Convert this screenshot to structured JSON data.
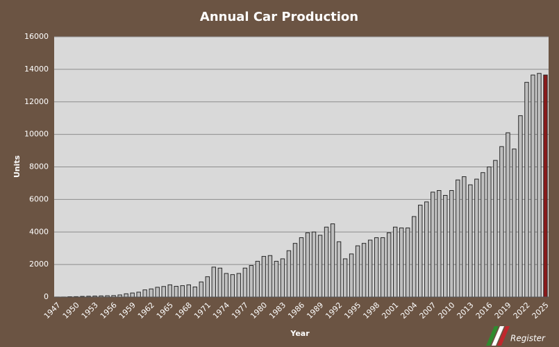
{
  "chart_data": {
    "type": "bar",
    "title": "Annual Car Production",
    "x_label": "Year",
    "y_label": "Units",
    "categories": [
      "1947",
      null,
      null,
      "1950",
      null,
      null,
      "1953",
      null,
      null,
      "1956",
      null,
      null,
      "1959",
      null,
      null,
      "1962",
      null,
      null,
      "1965",
      null,
      null,
      "1968",
      null,
      null,
      "1971",
      null,
      null,
      "1974",
      null,
      null,
      "1977",
      null,
      null,
      "1980",
      null,
      null,
      "1983",
      null,
      null,
      "1986",
      null,
      null,
      "1989",
      null,
      null,
      "1992",
      null,
      null,
      "1995",
      null,
      null,
      "1998",
      null,
      null,
      "2001",
      null,
      null,
      "2004",
      null,
      null,
      "2007",
      null,
      null,
      "2010",
      null,
      null,
      "2013",
      null,
      null,
      "2016",
      null,
      null,
      "2019",
      null,
      null,
      "2022",
      null,
      null,
      "2025"
    ],
    "values": [
      3,
      5,
      20,
      25,
      40,
      50,
      60,
      70,
      80,
      90,
      130,
      200,
      250,
      300,
      440,
      500,
      600,
      650,
      750,
      660,
      700,
      750,
      620,
      930,
      1250,
      1840,
      1780,
      1450,
      1380,
      1450,
      1780,
      1940,
      2200,
      2500,
      2550,
      2200,
      2350,
      2850,
      3300,
      3650,
      3950,
      4000,
      3800,
      4300,
      4500,
      3400,
      2350,
      2650,
      3150,
      3300,
      3500,
      3650,
      3650,
      3950,
      4300,
      4250,
      4250,
      4950,
      5650,
      5850,
      6450,
      6550,
      6250,
      6550,
      7200,
      7400,
      6900,
      7250,
      7650,
      8000,
      8400,
      9250,
      10100,
      9100,
      11150,
      13200,
      13650,
      13750,
      13650
    ],
    "colors": [
      "#bfbfbf",
      "#bfbfbf",
      "#bfbfbf",
      "#bfbfbf",
      "#bfbfbf",
      "#bfbfbf",
      "#bfbfbf",
      "#bfbfbf",
      "#bfbfbf",
      "#bfbfbf",
      "#bfbfbf",
      "#bfbfbf",
      "#bfbfbf",
      "#bfbfbf",
      "#bfbfbf",
      "#bfbfbf",
      "#bfbfbf",
      "#bfbfbf",
      "#bfbfbf",
      "#bfbfbf",
      "#bfbfbf",
      "#bfbfbf",
      "#bfbfbf",
      "#bfbfbf",
      "#bfbfbf",
      "#bfbfbf",
      "#bfbfbf",
      "#bfbfbf",
      "#bfbfbf",
      "#bfbfbf",
      "#bfbfbf",
      "#bfbfbf",
      "#bfbfbf",
      "#bfbfbf",
      "#bfbfbf",
      "#bfbfbf",
      "#bfbfbf",
      "#bfbfbf",
      "#bfbfbf",
      "#bfbfbf",
      "#bfbfbf",
      "#bfbfbf",
      "#bfbfbf",
      "#bfbfbf",
      "#bfbfbf",
      "#bfbfbf",
      "#bfbfbf",
      "#bfbfbf",
      "#bfbfbf",
      "#bfbfbf",
      "#bfbfbf",
      "#bfbfbf",
      "#bfbfbf",
      "#bfbfbf",
      "#bfbfbf",
      "#bfbfbf",
      "#bfbfbf",
      "#bfbfbf",
      "#bfbfbf",
      "#bfbfbf",
      "#bfbfbf",
      "#bfbfbf",
      "#bfbfbf",
      "#bfbfbf",
      "#bfbfbf",
      "#bfbfbf",
      "#bfbfbf",
      "#bfbfbf",
      "#bfbfbf",
      "#bfbfbf",
      "#bfbfbf",
      "#bfbfbf",
      "#bfbfbf",
      "#bfbfbf",
      "#bfbfbf",
      "#bfbfbf",
      "#bfbfbf",
      "#bfbfbf",
      "#8b1a1a"
    ],
    "ylim": [
      0,
      16000
    ],
    "yticks": [
      0,
      2000,
      4000,
      6000,
      8000,
      10000,
      12000,
      14000,
      16000
    ],
    "grid": true
  },
  "logo": {
    "text": "Register"
  }
}
